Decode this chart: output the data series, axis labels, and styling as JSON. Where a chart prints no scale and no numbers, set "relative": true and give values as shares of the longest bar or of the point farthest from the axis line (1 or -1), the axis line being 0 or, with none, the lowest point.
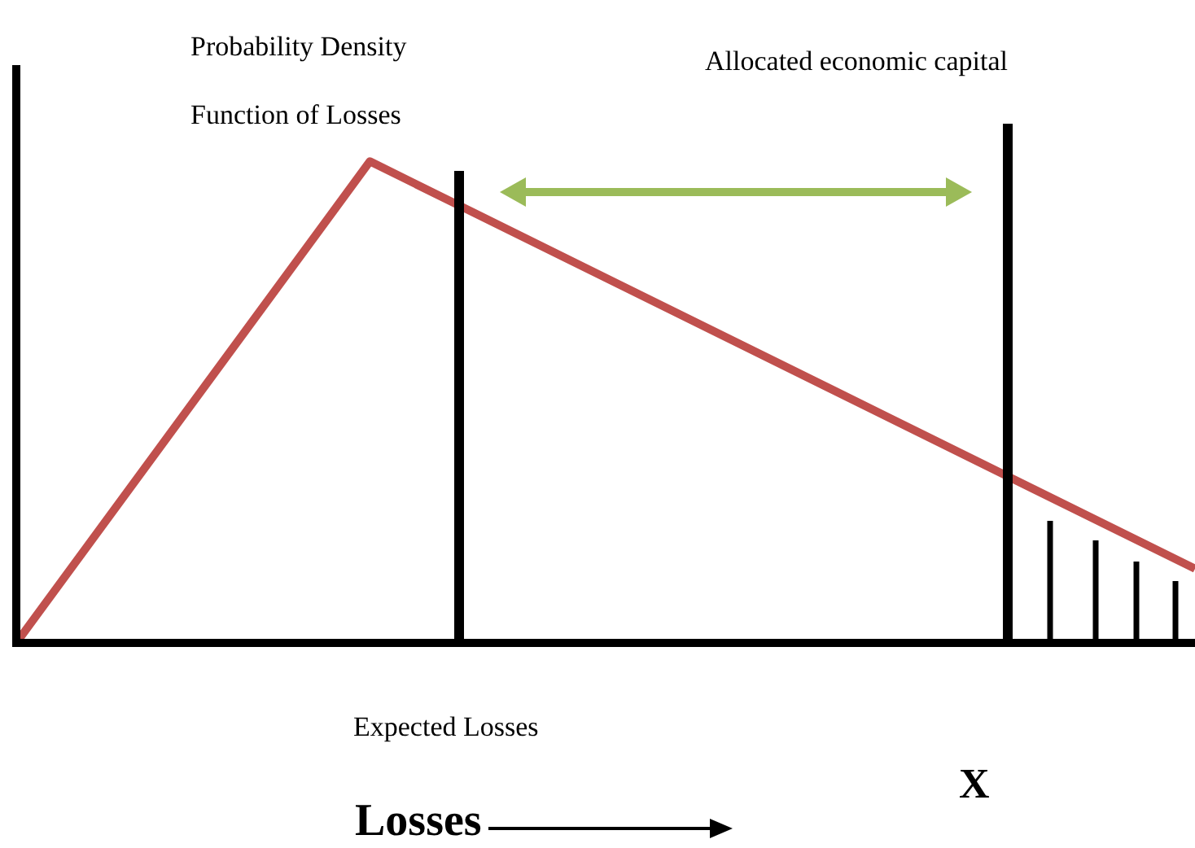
{
  "chart_data": {
    "type": "line",
    "title": "Probability Density Function of Losses",
    "xlabel": "Losses",
    "annotations": [
      "Allocated economic capital",
      "Expected Losses",
      "X"
    ],
    "categories": [
      null,
      null,
      null,
      null,
      null,
      null,
      null,
      null,
      null,
      null,
      null,
      null,
      null,
      null,
      null,
      null,
      null,
      null,
      null,
      null,
      null,
      null,
      null,
      null,
      null,
      null,
      null,
      null,
      null,
      null,
      null
    ],
    "relative": true,
    "tick_labels": false,
    "color": "#c0504d",
    "values": [
      0,
      null,
      null,
      null,
      null,
      null,
      null,
      null,
      null,
      1,
      null,
      null,
      null,
      null,
      null,
      null,
      null,
      null,
      null,
      null,
      null,
      null,
      null,
      null,
      null,
      null,
      null,
      null,
      null,
      null,
      0.154
    ]
  }
}
